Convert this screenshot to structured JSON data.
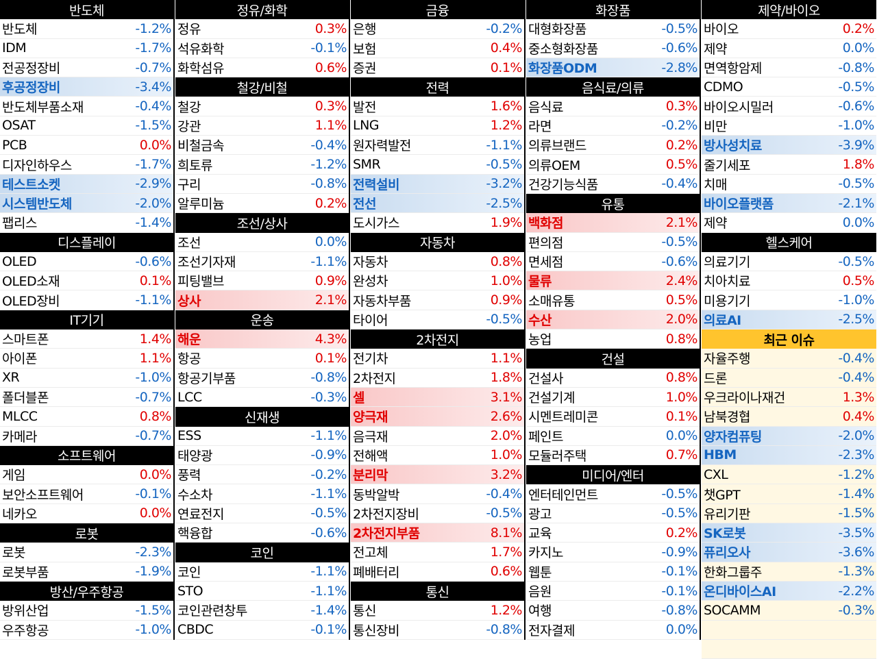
{
  "columns": [
    [
      {
        "type": "header",
        "label": "반도체"
      },
      {
        "name": "반도체",
        "value": "-1.2%",
        "sign": "neg"
      },
      {
        "name": "IDM",
        "value": "-1.7%",
        "sign": "neg"
      },
      {
        "name": "전공정장비",
        "value": "-0.7%",
        "sign": "neg"
      },
      {
        "name": "후공정장비",
        "value": "-3.4%",
        "sign": "neg",
        "hl": "blue"
      },
      {
        "name": "반도체부품소재",
        "value": "-0.4%",
        "sign": "neg"
      },
      {
        "name": "OSAT",
        "value": "-1.5%",
        "sign": "neg"
      },
      {
        "name": "PCB",
        "value": "0.0%",
        "sign": "pos"
      },
      {
        "name": "디자인하우스",
        "value": "-1.7%",
        "sign": "neg"
      },
      {
        "name": "테스트소켓",
        "value": "-2.9%",
        "sign": "neg",
        "hl": "blue"
      },
      {
        "name": "시스템반도체",
        "value": "-2.0%",
        "sign": "neg",
        "hl": "blue"
      },
      {
        "name": "팹리스",
        "value": "-1.4%",
        "sign": "neg"
      },
      {
        "type": "header",
        "label": "디스플레이"
      },
      {
        "name": "OLED",
        "value": "-0.6%",
        "sign": "neg"
      },
      {
        "name": "OLED소재",
        "value": "0.1%",
        "sign": "pos"
      },
      {
        "name": "OLED장비",
        "value": "-1.1%",
        "sign": "neg"
      },
      {
        "type": "header",
        "label": "IT기기"
      },
      {
        "name": "스마트폰",
        "value": "1.4%",
        "sign": "pos"
      },
      {
        "name": "아이폰",
        "value": "1.1%",
        "sign": "pos"
      },
      {
        "name": "XR",
        "value": "-1.0%",
        "sign": "neg"
      },
      {
        "name": "폴더블폰",
        "value": "-0.7%",
        "sign": "neg"
      },
      {
        "name": "MLCC",
        "value": "0.8%",
        "sign": "pos"
      },
      {
        "name": "카메라",
        "value": "-0.7%",
        "sign": "neg"
      },
      {
        "type": "header",
        "label": "소프트웨어"
      },
      {
        "name": "게임",
        "value": "0.0%",
        "sign": "pos"
      },
      {
        "name": "보안소프트웨어",
        "value": "-0.1%",
        "sign": "neg"
      },
      {
        "name": "네카오",
        "value": "0.0%",
        "sign": "pos"
      },
      {
        "type": "header",
        "label": "로봇"
      },
      {
        "name": "로봇",
        "value": "-2.3%",
        "sign": "neg"
      },
      {
        "name": "로봇부품",
        "value": "-1.9%",
        "sign": "neg"
      },
      {
        "type": "header",
        "label": "방산/우주항공"
      },
      {
        "name": "방위산업",
        "value": "-1.5%",
        "sign": "neg"
      },
      {
        "name": "우주항공",
        "value": "-1.0%",
        "sign": "neg"
      }
    ],
    [
      {
        "type": "header",
        "label": "정유/화학"
      },
      {
        "name": "정유",
        "value": "0.3%",
        "sign": "pos"
      },
      {
        "name": "석유화학",
        "value": "-0.1%",
        "sign": "neg"
      },
      {
        "name": "화학섬유",
        "value": "0.6%",
        "sign": "pos"
      },
      {
        "type": "header",
        "label": "철강/비철"
      },
      {
        "name": "철강",
        "value": "0.3%",
        "sign": "pos"
      },
      {
        "name": "강관",
        "value": "1.1%",
        "sign": "pos"
      },
      {
        "name": "비철금속",
        "value": "-0.4%",
        "sign": "neg"
      },
      {
        "name": "희토류",
        "value": "-1.2%",
        "sign": "neg"
      },
      {
        "name": "구리",
        "value": "-0.8%",
        "sign": "neg"
      },
      {
        "name": "알루미늄",
        "value": "0.2%",
        "sign": "pos"
      },
      {
        "type": "header",
        "label": "조선/상사"
      },
      {
        "name": "조선",
        "value": "0.0%",
        "sign": "zero"
      },
      {
        "name": "조선기자재",
        "value": "-1.1%",
        "sign": "neg"
      },
      {
        "name": "피팅밸브",
        "value": "0.9%",
        "sign": "pos"
      },
      {
        "name": "상사",
        "value": "2.1%",
        "sign": "pos",
        "hl": "red"
      },
      {
        "type": "header",
        "label": "운송"
      },
      {
        "name": "해운",
        "value": "4.3%",
        "sign": "pos",
        "hl": "red"
      },
      {
        "name": "항공",
        "value": "0.1%",
        "sign": "pos"
      },
      {
        "name": "항공기부품",
        "value": "-0.8%",
        "sign": "neg"
      },
      {
        "name": "LCC",
        "value": "-0.3%",
        "sign": "neg"
      },
      {
        "type": "header",
        "label": "신재생"
      },
      {
        "name": "ESS",
        "value": "-1.1%",
        "sign": "neg"
      },
      {
        "name": "태양광",
        "value": "-0.9%",
        "sign": "neg"
      },
      {
        "name": "풍력",
        "value": "-0.2%",
        "sign": "neg"
      },
      {
        "name": "수소차",
        "value": "-1.1%",
        "sign": "neg"
      },
      {
        "name": "연료전지",
        "value": "-0.5%",
        "sign": "neg"
      },
      {
        "name": "핵융합",
        "value": "-0.6%",
        "sign": "neg"
      },
      {
        "type": "header",
        "label": "코인"
      },
      {
        "name": "코인",
        "value": "-1.1%",
        "sign": "neg"
      },
      {
        "name": "STO",
        "value": "-1.1%",
        "sign": "neg"
      },
      {
        "name": "코인관련창투",
        "value": "-1.4%",
        "sign": "neg"
      },
      {
        "name": "CBDC",
        "value": "-0.1%",
        "sign": "neg"
      }
    ],
    [
      {
        "type": "header",
        "label": "금융"
      },
      {
        "name": "은행",
        "value": "-0.2%",
        "sign": "neg"
      },
      {
        "name": "보험",
        "value": "0.4%",
        "sign": "pos"
      },
      {
        "name": "증권",
        "value": "0.1%",
        "sign": "pos"
      },
      {
        "type": "header",
        "label": "전력"
      },
      {
        "name": "발전",
        "value": "1.6%",
        "sign": "pos"
      },
      {
        "name": "LNG",
        "value": "1.2%",
        "sign": "pos"
      },
      {
        "name": "원자력발전",
        "value": "-1.1%",
        "sign": "neg"
      },
      {
        "name": "SMR",
        "value": "-0.5%",
        "sign": "neg"
      },
      {
        "name": "전력설비",
        "value": "-3.2%",
        "sign": "neg",
        "hl": "blue"
      },
      {
        "name": "전선",
        "value": "-2.5%",
        "sign": "neg",
        "hl": "blue"
      },
      {
        "name": "도시가스",
        "value": "1.9%",
        "sign": "pos"
      },
      {
        "type": "header",
        "label": "자동차"
      },
      {
        "name": "자동차",
        "value": "0.8%",
        "sign": "pos"
      },
      {
        "name": "완성차",
        "value": "1.0%",
        "sign": "pos"
      },
      {
        "name": "자동차부품",
        "value": "0.9%",
        "sign": "pos"
      },
      {
        "name": "타이어",
        "value": "-0.5%",
        "sign": "neg"
      },
      {
        "type": "header",
        "label": "2차전지"
      },
      {
        "name": "전기차",
        "value": "1.1%",
        "sign": "pos"
      },
      {
        "name": "2차전지",
        "value": "1.8%",
        "sign": "pos"
      },
      {
        "name": "셀",
        "value": "3.1%",
        "sign": "pos",
        "hl": "red"
      },
      {
        "name": "양극재",
        "value": "2.6%",
        "sign": "pos",
        "hl": "red"
      },
      {
        "name": "음극재",
        "value": "2.0%",
        "sign": "pos"
      },
      {
        "name": "전해액",
        "value": "1.0%",
        "sign": "pos"
      },
      {
        "name": "분리막",
        "value": "3.2%",
        "sign": "pos",
        "hl": "red"
      },
      {
        "name": "동박알박",
        "value": "-0.4%",
        "sign": "neg"
      },
      {
        "name": "2차전지장비",
        "value": "-0.5%",
        "sign": "neg"
      },
      {
        "name": "2차전지부품",
        "value": "8.1%",
        "sign": "pos",
        "hl": "red"
      },
      {
        "name": "전고체",
        "value": "1.7%",
        "sign": "pos"
      },
      {
        "name": "폐배터리",
        "value": "0.6%",
        "sign": "pos"
      },
      {
        "type": "header",
        "label": "통신"
      },
      {
        "name": "통신",
        "value": "1.2%",
        "sign": "pos"
      },
      {
        "name": "통신장비",
        "value": "-0.8%",
        "sign": "neg"
      }
    ],
    [
      {
        "type": "header",
        "label": "화장품"
      },
      {
        "name": "대형화장품",
        "value": "-0.5%",
        "sign": "neg"
      },
      {
        "name": "중소형화장품",
        "value": "-0.6%",
        "sign": "neg"
      },
      {
        "name": "화장품ODM",
        "value": "-2.8%",
        "sign": "neg",
        "hl": "blue"
      },
      {
        "type": "header",
        "label": "음식료/의류"
      },
      {
        "name": "음식료",
        "value": "0.3%",
        "sign": "pos"
      },
      {
        "name": "라면",
        "value": "-0.2%",
        "sign": "neg"
      },
      {
        "name": "의류브랜드",
        "value": "0.2%",
        "sign": "pos"
      },
      {
        "name": "의류OEM",
        "value": "0.5%",
        "sign": "pos"
      },
      {
        "name": "건강기능식품",
        "value": "-0.4%",
        "sign": "neg"
      },
      {
        "type": "header",
        "label": "유통"
      },
      {
        "name": "백화점",
        "value": "2.1%",
        "sign": "pos",
        "hl": "red"
      },
      {
        "name": "편의점",
        "value": "-0.5%",
        "sign": "neg"
      },
      {
        "name": "면세점",
        "value": "-0.6%",
        "sign": "neg"
      },
      {
        "name": "물류",
        "value": "2.4%",
        "sign": "pos",
        "hl": "red"
      },
      {
        "name": "소매유통",
        "value": "0.5%",
        "sign": "pos"
      },
      {
        "name": "수산",
        "value": "2.0%",
        "sign": "pos",
        "hl": "red"
      },
      {
        "name": "농업",
        "value": "0.8%",
        "sign": "pos"
      },
      {
        "type": "header",
        "label": "건설"
      },
      {
        "name": "건설사",
        "value": "0.8%",
        "sign": "pos"
      },
      {
        "name": "건설기계",
        "value": "1.0%",
        "sign": "pos"
      },
      {
        "name": "시멘트레미콘",
        "value": "0.1%",
        "sign": "pos"
      },
      {
        "name": "페인트",
        "value": "0.0%",
        "sign": "zero"
      },
      {
        "name": "모듈러주택",
        "value": "0.7%",
        "sign": "pos"
      },
      {
        "type": "header",
        "label": "미디어/엔터"
      },
      {
        "name": "엔터테인먼트",
        "value": "-0.5%",
        "sign": "neg"
      },
      {
        "name": "광고",
        "value": "-0.5%",
        "sign": "neg"
      },
      {
        "name": "교육",
        "value": "0.2%",
        "sign": "pos"
      },
      {
        "name": "카지노",
        "value": "-0.9%",
        "sign": "neg"
      },
      {
        "name": "웹툰",
        "value": "-0.1%",
        "sign": "neg"
      },
      {
        "name": "음원",
        "value": "-0.1%",
        "sign": "neg"
      },
      {
        "name": "여행",
        "value": "-0.8%",
        "sign": "neg"
      },
      {
        "name": "전자결제",
        "value": "0.0%",
        "sign": "zero"
      }
    ],
    [
      {
        "type": "header",
        "label": "제약/바이오"
      },
      {
        "name": "바이오",
        "value": "0.2%",
        "sign": "pos"
      },
      {
        "name": "제약",
        "value": "0.0%",
        "sign": "zero"
      },
      {
        "name": "면역항암제",
        "value": "-0.8%",
        "sign": "neg"
      },
      {
        "name": "CDMO",
        "value": "-0.5%",
        "sign": "neg"
      },
      {
        "name": "바이오시밀러",
        "value": "-0.6%",
        "sign": "neg"
      },
      {
        "name": "비만",
        "value": "-1.0%",
        "sign": "neg"
      },
      {
        "name": "방사성치료",
        "value": "-3.9%",
        "sign": "neg",
        "hl": "blue"
      },
      {
        "name": "줄기세포",
        "value": "1.8%",
        "sign": "pos"
      },
      {
        "name": "치매",
        "value": "-0.5%",
        "sign": "neg"
      },
      {
        "name": "바이오플랫폼",
        "value": "-2.1%",
        "sign": "neg",
        "hl": "blue"
      },
      {
        "name": "제약",
        "value": "0.0%",
        "sign": "zero"
      },
      {
        "type": "header",
        "label": "헬스케어"
      },
      {
        "name": "의료기기",
        "value": "-0.5%",
        "sign": "neg"
      },
      {
        "name": "치아치료",
        "value": "0.5%",
        "sign": "pos"
      },
      {
        "name": "미용기기",
        "value": "-1.0%",
        "sign": "neg"
      },
      {
        "name": "의료AI",
        "value": "-2.5%",
        "sign": "neg",
        "hl": "blue"
      },
      {
        "type": "header",
        "label": "최근 이슈",
        "style": "yellow"
      },
      {
        "name": "자율주행",
        "value": "-0.4%",
        "sign": "neg",
        "recent": true
      },
      {
        "name": "드론",
        "value": "-0.4%",
        "sign": "neg",
        "recent": true
      },
      {
        "name": "우크라이나재건",
        "value": "1.3%",
        "sign": "pos",
        "recent": true
      },
      {
        "name": "남북경협",
        "value": "0.4%",
        "sign": "pos",
        "recent": true
      },
      {
        "name": "양자컴퓨팅",
        "value": "-2.0%",
        "sign": "neg",
        "hl": "blue"
      },
      {
        "name": "HBM",
        "value": "-2.3%",
        "sign": "neg",
        "hl": "blue"
      },
      {
        "name": "CXL",
        "value": "-1.2%",
        "sign": "neg",
        "recent": true
      },
      {
        "name": "챗GPT",
        "value": "-1.4%",
        "sign": "neg",
        "recent": true
      },
      {
        "name": "유리기판",
        "value": "-1.5%",
        "sign": "neg",
        "recent": true
      },
      {
        "name": "SK로봇",
        "value": "-3.5%",
        "sign": "neg",
        "hl": "blue"
      },
      {
        "name": "퓨리오사",
        "value": "-3.6%",
        "sign": "neg",
        "hl": "blue"
      },
      {
        "name": "한화그룹주",
        "value": "-1.3%",
        "sign": "neg",
        "recent": true
      },
      {
        "name": "온디바이스AI",
        "value": "-2.2%",
        "sign": "neg",
        "hl": "blue"
      },
      {
        "name": "SOCAMM",
        "value": "-0.3%",
        "sign": "neg",
        "recent": true
      },
      {
        "type": "blank",
        "recent": true
      },
      {
        "type": "blank",
        "recent": true
      }
    ]
  ]
}
